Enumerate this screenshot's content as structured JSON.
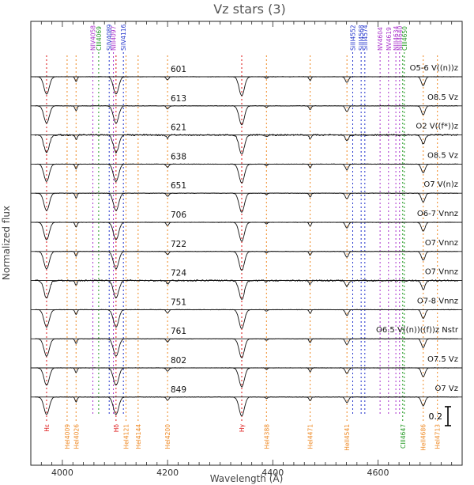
{
  "chart_data": {
    "type": "line",
    "title": "Vz stars (3)",
    "xlabel": "Wavelength (Å)",
    "ylabel": "Normalized flux",
    "xlim": [
      3940,
      4760
    ],
    "x_ticks": [
      4000,
      4200,
      4400,
      4600
    ],
    "x_tick_labels": [
      "4000",
      "4200",
      "4400",
      "4600"
    ],
    "scale_bar_label": "0.2",
    "series": [
      {
        "name": "601",
        "spectral_type": "O5-6 V((n))z"
      },
      {
        "name": "613",
        "spectral_type": "O8.5 Vz"
      },
      {
        "name": "621",
        "spectral_type": "O2 V((f*))z"
      },
      {
        "name": "638",
        "spectral_type": "O8.5 Vz"
      },
      {
        "name": "651",
        "spectral_type": "O7 V(n)z"
      },
      {
        "name": "706",
        "spectral_type": "O6-7 Vnnz"
      },
      {
        "name": "722",
        "spectral_type": "O7 Vnnz"
      },
      {
        "name": "724",
        "spectral_type": "O7 Vnnz"
      },
      {
        "name": "751",
        "spectral_type": "O7-8 Vnnz"
      },
      {
        "name": "761",
        "spectral_type": "O6.5 V((n))((f))z Nstr"
      },
      {
        "name": "802",
        "spectral_type": "O7.5 Vz"
      },
      {
        "name": "849",
        "spectral_type": "O7 Vz"
      }
    ],
    "top_lines": [
      {
        "label": "NIV4058",
        "x": 4058,
        "color": "#aa33cc"
      },
      {
        "label": "CIII4069",
        "x": 4069,
        "color": "#229922"
      },
      {
        "label": "SiIV4089",
        "x": 4089,
        "color": "#2233cc"
      },
      {
        "label": "NIII4097",
        "x": 4097,
        "color": "#aa33cc"
      },
      {
        "label": "SiIV4116",
        "x": 4116,
        "color": "#2233cc"
      },
      {
        "label": "SiIII4552",
        "x": 4552,
        "color": "#2233cc"
      },
      {
        "label": "SiIII4568",
        "x": 4568,
        "color": "#2233cc"
      },
      {
        "label": "SiIII4574",
        "x": 4575,
        "color": "#2233cc"
      },
      {
        "label": "NV4604",
        "x": 4604,
        "color": "#aa33cc"
      },
      {
        "label": "NV4619",
        "x": 4620,
        "color": "#aa33cc"
      },
      {
        "label": "NIII4634",
        "x": 4634,
        "color": "#aa33cc"
      },
      {
        "label": "NIII4640",
        "x": 4641,
        "color": "#aa33cc"
      },
      {
        "label": "CIII4650",
        "x": 4650,
        "color": "#229922"
      }
    ],
    "bottom_lines": [
      {
        "label": "Hε",
        "x": 3970,
        "color": "#dd1111"
      },
      {
        "label": "HeI4009",
        "x": 4009,
        "color": "#ee8822"
      },
      {
        "label": "HeI4026",
        "x": 4026,
        "color": "#ee8822"
      },
      {
        "label": "Hδ",
        "x": 4102,
        "color": "#dd1111"
      },
      {
        "label": "HeI4121",
        "x": 4121,
        "color": "#ee8822"
      },
      {
        "label": "HeI4144",
        "x": 4144,
        "color": "#ee8822"
      },
      {
        "label": "HeI4200",
        "x": 4200,
        "color": "#ee8822"
      },
      {
        "label": "Hγ",
        "x": 4341,
        "color": "#dd1111"
      },
      {
        "label": "HeI4388",
        "x": 4388,
        "color": "#ee8822"
      },
      {
        "label": "HeI4471",
        "x": 4471,
        "color": "#ee8822"
      },
      {
        "label": "HeII4541",
        "x": 4541,
        "color": "#ee8822"
      },
      {
        "label": "CIII4647",
        "x": 4647,
        "color": "#229922"
      },
      {
        "label": "HeII4686",
        "x": 4686,
        "color": "#ee8822"
      },
      {
        "label": "HeI4713",
        "x": 4713,
        "color": "#ee8822"
      }
    ],
    "absorption_features": [
      {
        "x": 3970,
        "depth": 0.55,
        "width": 5
      },
      {
        "x": 4026,
        "depth": 0.15,
        "width": 2
      },
      {
        "x": 4102,
        "depth": 0.55,
        "width": 5
      },
      {
        "x": 4200,
        "depth": 0.1,
        "width": 2.5
      },
      {
        "x": 4341,
        "depth": 0.6,
        "width": 5
      },
      {
        "x": 4388,
        "depth": 0.05,
        "width": 2
      },
      {
        "x": 4471,
        "depth": 0.12,
        "width": 2
      },
      {
        "x": 4541,
        "depth": 0.18,
        "width": 3
      },
      {
        "x": 4686,
        "depth": 0.28,
        "width": 3.5
      }
    ]
  }
}
